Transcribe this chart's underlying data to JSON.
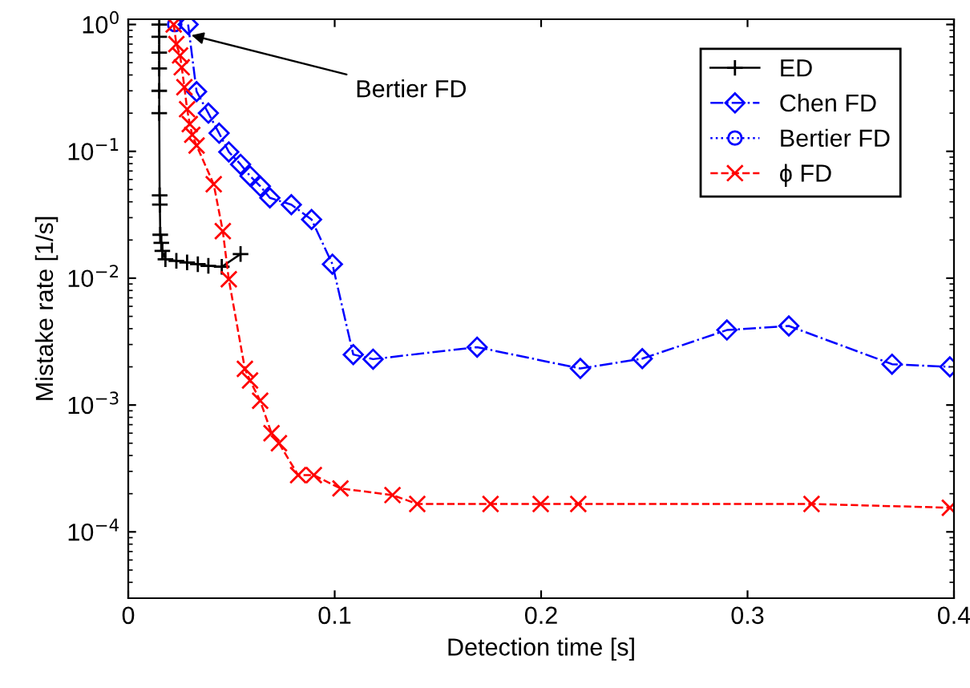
{
  "chart_data": {
    "type": "line",
    "xlabel": "Detection time [s]",
    "ylabel": "Mistake rate [1/s]",
    "xlim": [
      0,
      0.4
    ],
    "xticks": [
      0,
      0.1,
      0.2,
      0.3,
      0.4
    ],
    "ylim": [
      3e-05,
      1.1
    ],
    "log": "y",
    "yticks": [
      {
        "value": 0.0001,
        "label": "10$^{−4}$"
      },
      {
        "value": 0.001,
        "label": "10$^{−3}$"
      },
      {
        "value": 0.01,
        "label": "10$^{−2}$"
      },
      {
        "value": 0.1,
        "label": "10$^{−1}$"
      },
      {
        "value": 1,
        "label": "10$^{0}$"
      }
    ],
    "grid": false,
    "legend": "top right",
    "series": [
      {
        "name": "ED",
        "color": "#000000",
        "marker": "cross",
        "line_style": "solid",
        "x": [
          0.015,
          0.015,
          0.015,
          0.015,
          0.015,
          0.015,
          0.0152,
          0.0153,
          0.0155,
          0.016,
          0.0165,
          0.018,
          0.0233,
          0.0285,
          0.0337,
          0.0388,
          0.0453,
          0.0544
        ],
        "values": [
          1.0,
          0.8,
          0.6,
          0.45,
          0.3,
          0.2,
          0.045,
          0.038,
          0.022,
          0.019,
          0.0164,
          0.0141,
          0.0137,
          0.0133,
          0.0129,
          0.0125,
          0.0123,
          0.0155
        ]
      },
      {
        "name": "Chen FD",
        "color": "#0000ff",
        "marker": "diamond",
        "line_style": "dashdot",
        "x": [
          0.029,
          0.0331,
          0.0388,
          0.044,
          0.0487,
          0.0544,
          0.059,
          0.064,
          0.0686,
          0.079,
          0.0888,
          0.0989,
          0.109,
          0.1186,
          0.169,
          0.219,
          0.249,
          0.29,
          0.32,
          0.37,
          0.398
        ],
        "values": [
          1.0,
          0.296,
          0.2,
          0.139,
          0.099,
          0.079,
          0.064,
          0.053,
          0.043,
          0.038,
          0.029,
          0.0129,
          0.0025,
          0.0023,
          0.00286,
          0.00194,
          0.00232,
          0.0039,
          0.0042,
          0.0021,
          0.002
        ]
      },
      {
        "name": "Bertier FD",
        "color": "#0000ff",
        "marker": "circle",
        "line_style": "dotted",
        "x": [
          0.0225
        ],
        "values": [
          1.0
        ]
      },
      {
        "name": "ϕ FD",
        "color": "#ff0000",
        "marker": "cross",
        "line_style": "dashed",
        "x": [
          0.022,
          0.0233,
          0.0251,
          0.0259,
          0.0272,
          0.0285,
          0.0298,
          0.031,
          0.0331,
          0.0414,
          0.0458,
          0.0487,
          0.0565,
          0.059,
          0.0639,
          0.0694,
          0.073,
          0.0823,
          0.0899,
          0.1028,
          0.128,
          0.14,
          0.1755,
          0.1998,
          0.218,
          0.331,
          0.398
        ],
        "values": [
          1.0,
          0.7,
          0.57,
          0.46,
          0.32,
          0.215,
          0.164,
          0.135,
          0.111,
          0.055,
          0.0235,
          0.0098,
          0.00193,
          0.00156,
          0.00108,
          0.0006,
          0.0005,
          0.00028,
          0.00028,
          0.00022,
          0.000195,
          0.000166,
          0.000166,
          0.000166,
          0.000166,
          0.000166,
          0.000155
        ]
      }
    ],
    "annotations": [
      {
        "text": "Bertier FD",
        "x": 0.0285,
        "y": 0.84
      }
    ]
  }
}
